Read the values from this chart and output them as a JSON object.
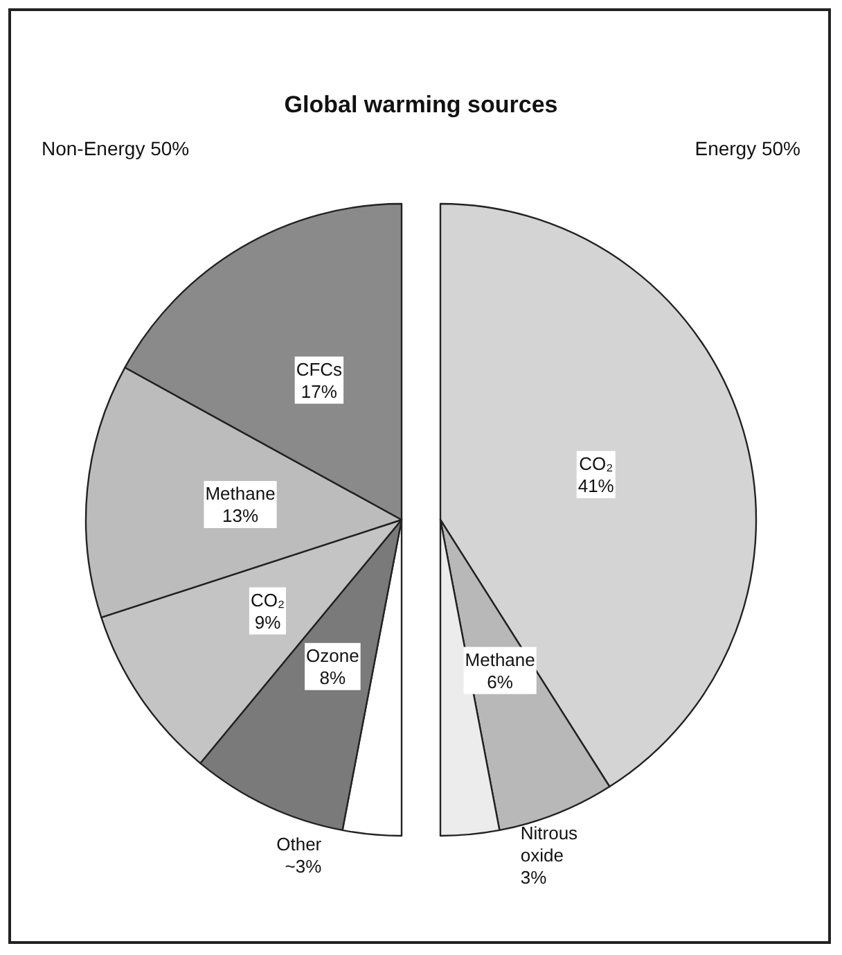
{
  "chart_data": {
    "type": "pie",
    "title": "Global warming sources",
    "categories": [
      "CO₂",
      "Methane",
      "Nitrous oxide",
      "Other",
      "Ozone",
      "CO₂",
      "Methane",
      "CFCs"
    ],
    "values": [
      41,
      6,
      3,
      3,
      8,
      9,
      13,
      17
    ],
    "value_labels": [
      "41%",
      "6%",
      "3%",
      "~3%",
      "8%",
      "9%",
      "13%",
      "17%"
    ],
    "colors": [
      "#d4d4d4",
      "#b8b8b8",
      "#ececec",
      "#ffffff",
      "#7a7a7a",
      "#c4c4c4",
      "#bcbcbc",
      "#8a8a8a"
    ],
    "annotations": [
      "Non-Energy 50%",
      "Energy 50%"
    ]
  }
}
